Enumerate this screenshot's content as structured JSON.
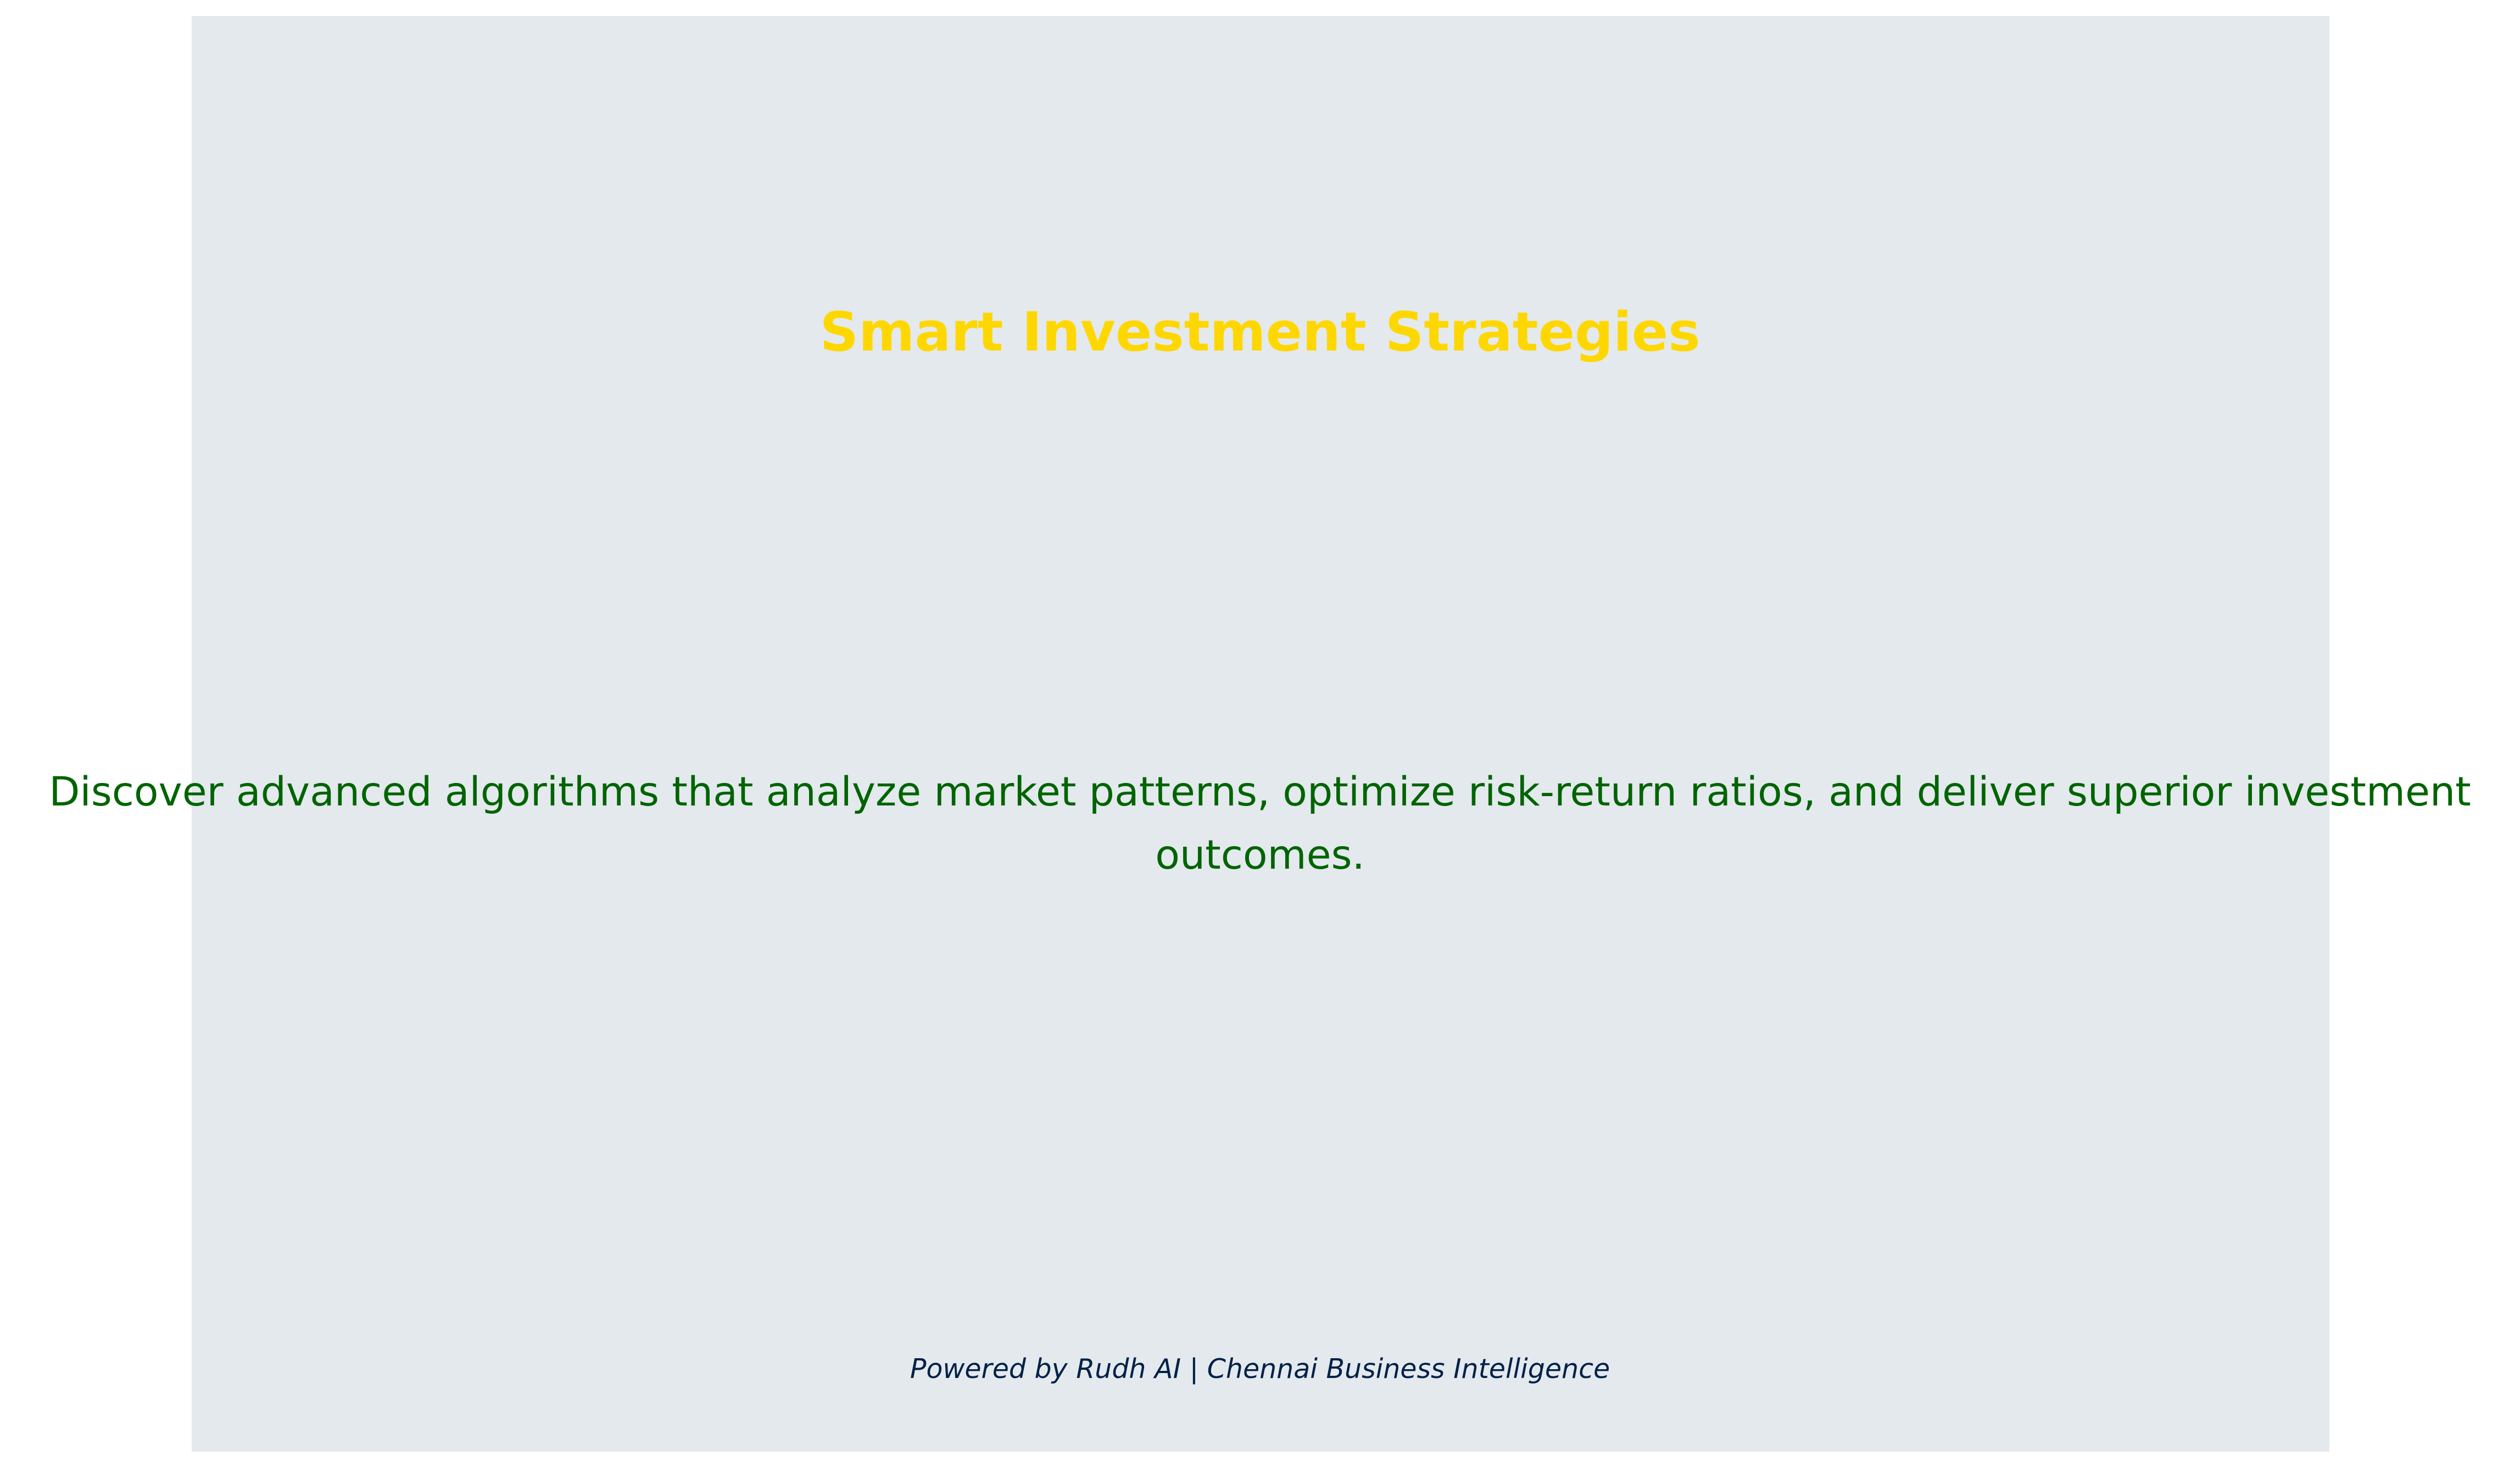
{
  "title": "Smart Investment Strategies",
  "description": {
    "line1": "Discover advanced algorithms that analyze market patterns, optimize risk-return ratios, and deliver superior investment",
    "line2": "outcomes."
  },
  "footer": "Powered by Rudh AI | Chennai Business Intelligence",
  "colors": {
    "background": "#e4e9ee",
    "title": "#ffd700",
    "description": "#006400",
    "footer": "#002147"
  }
}
